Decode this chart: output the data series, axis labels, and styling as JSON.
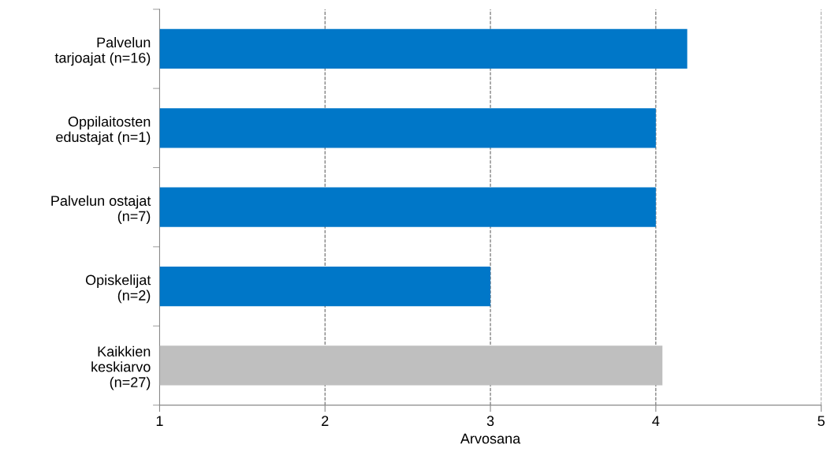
{
  "chart_data": {
    "type": "bar",
    "orientation": "horizontal",
    "xlabel": "Arvosana",
    "categories": [
      "Palvelun\ntarjoajat (n=16)",
      "Oppilaitosten\nedustajat (n=1)",
      "Palvelun ostajat\n(n=7)",
      "Opiskelijat\n(n=2)",
      "Kaikkien\nkeskiarvo\n(n=27)"
    ],
    "values": [
      4.19,
      4.0,
      4.0,
      3.0,
      4.04
    ],
    "colors": [
      "#0077c8",
      "#0077c8",
      "#0077c8",
      "#0077c8",
      "#bfbfbf"
    ],
    "xlim": [
      1,
      5
    ],
    "xticks": [
      1,
      2,
      3,
      4,
      5
    ],
    "grid": "x"
  }
}
